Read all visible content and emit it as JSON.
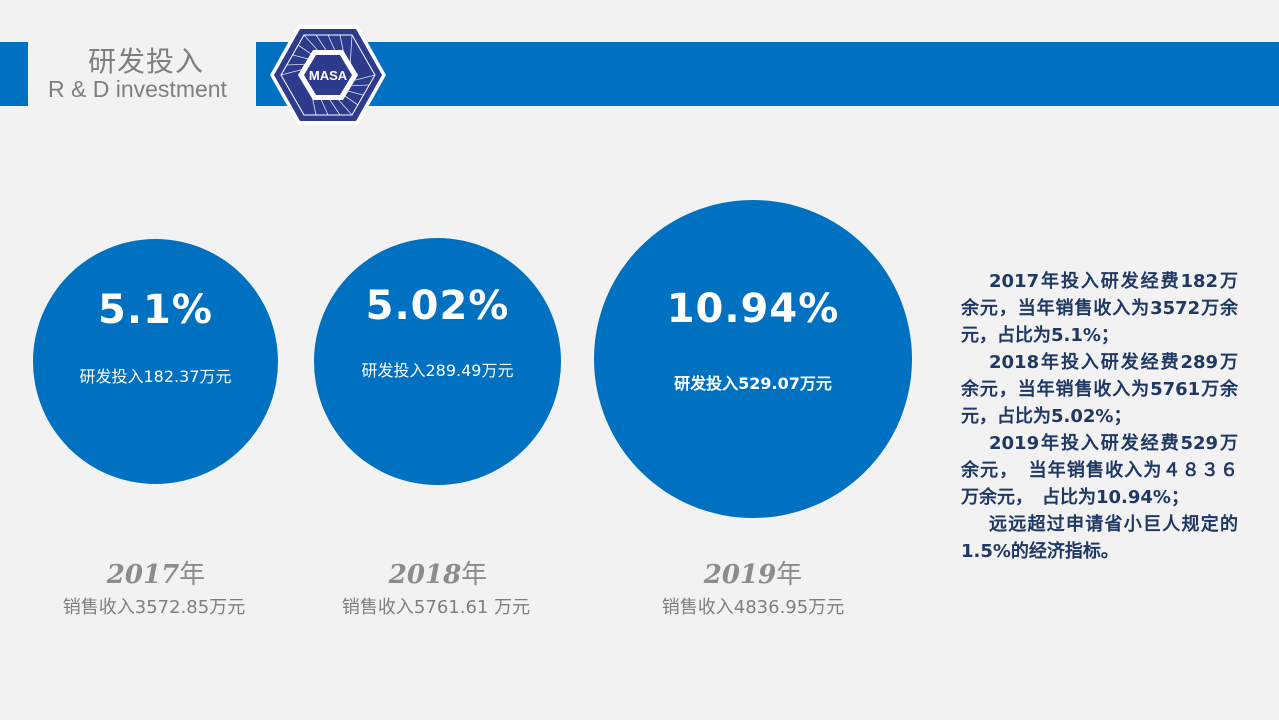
{
  "header": {
    "title_zh": "研发投入",
    "title_en": "R & D investment",
    "logo_text": "MASA",
    "bar_color": "#0070c0"
  },
  "years": [
    {
      "percent": "5.1%",
      "rd_label": "研发投入182.37万元",
      "year": "2017",
      "year_suffix": "年",
      "sales": "销售收入3572.85万元"
    },
    {
      "percent": "5.02%",
      "rd_label": "研发投入289.49万元",
      "year": "2018",
      "year_suffix": "年",
      "sales": "销售收入5761.61 万元"
    },
    {
      "percent": "10.94%",
      "rd_label": "研发投入529.07万元",
      "year": "2019",
      "year_suffix": "年",
      "sales": "销售收入4836.95万元"
    }
  ],
  "description": [
    "2017年投入研发经费182万余元，当年销售收入为3572万余元，占比为5.1%；",
    "2018年投入研发经费289万余元，当年销售收入为5761万余元，占比为5.02%；",
    "2019年投入研发经费529万余元，　当年销售收入为４８３６万余元，　占比为10.94%；",
    "远远超过申请省小巨人规定的1.5%的经济指标。"
  ]
}
